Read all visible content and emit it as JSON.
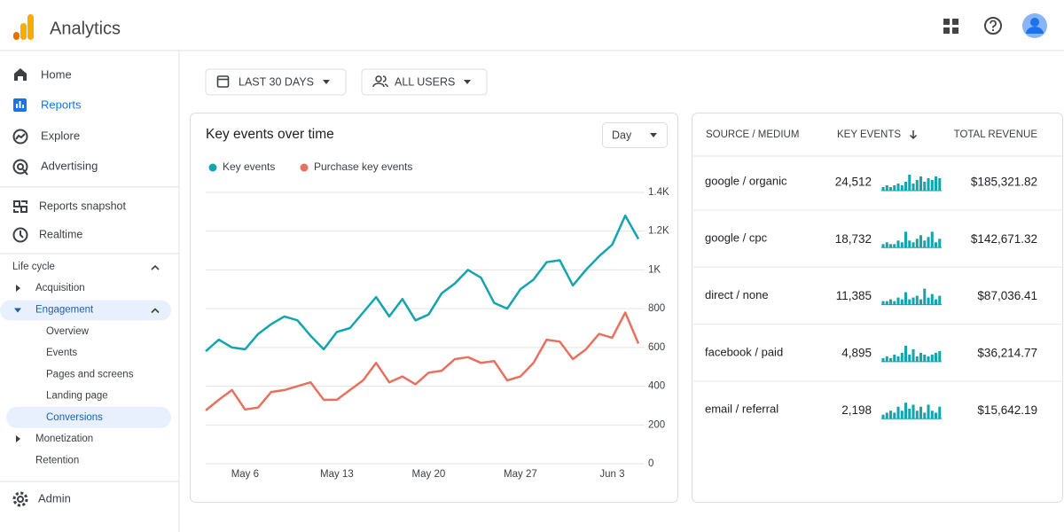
{
  "header": {
    "app_name": "Analytics"
  },
  "nav": {
    "main": [
      {
        "label": "Home"
      },
      {
        "label": "Reports",
        "selected": true
      },
      {
        "label": "Explore"
      },
      {
        "label": "Advertising"
      }
    ],
    "secondary": [
      {
        "label": "Reports snapshot"
      },
      {
        "label": "Realtime"
      }
    ],
    "section": "Life cycle",
    "tree": [
      {
        "label": "Acquisition"
      },
      {
        "label": "Engagement",
        "expanded": true,
        "children": [
          {
            "label": "Overview"
          },
          {
            "label": "Events"
          },
          {
            "label": "Pages and screens"
          },
          {
            "label": "Landing page"
          },
          {
            "label": "Conversions",
            "selected": true
          }
        ]
      },
      {
        "label": "Monetization"
      },
      {
        "label": "Retention"
      }
    ],
    "admin": "Admin"
  },
  "filters": [
    "LAST 30 DAYS",
    "ALL USERS"
  ],
  "chart_data": {
    "type": "line",
    "title": "Key events over time",
    "granularity": "Day",
    "categories": [
      null,
      null,
      null,
      "May 6",
      null,
      null,
      null,
      null,
      null,
      null,
      "May 13",
      null,
      null,
      null,
      null,
      null,
      null,
      "May 20",
      null,
      null,
      null,
      null,
      null,
      null,
      "May 27",
      null,
      null,
      null,
      null,
      null,
      null,
      "Jun 3",
      null,
      null
    ],
    "series": [
      {
        "name": "Key events",
        "color": "#12a4af",
        "values": [
          580,
          640,
          600,
          590,
          670,
          720,
          760,
          740,
          660,
          590,
          680,
          700,
          780,
          860,
          760,
          850,
          740,
          770,
          880,
          930,
          1000,
          960,
          830,
          800,
          900,
          950,
          1040,
          1050,
          920,
          1000,
          1070,
          1130,
          1280,
          1160
        ]
      },
      {
        "name": "Purchase key events",
        "color": "#e8705f",
        "values": [
          275,
          330,
          380,
          280,
          290,
          370,
          380,
          400,
          420,
          330,
          330,
          380,
          430,
          520,
          420,
          450,
          410,
          470,
          480,
          540,
          550,
          520,
          530,
          430,
          450,
          520,
          640,
          630,
          540,
          590,
          670,
          650,
          780,
          620
        ]
      }
    ],
    "ylim": [
      0,
      1400
    ],
    "yticks": [
      0,
      200,
      400,
      600,
      800,
      {
        "value": 1000,
        "label": "1K"
      },
      {
        "value": 1200,
        "label": "1.2K"
      },
      {
        "value": 1400,
        "label": "1.4K"
      }
    ],
    "grid": true
  },
  "table": {
    "columns": [
      "SOURCE / MEDIUM",
      "KEY EVENTS",
      "TOTAL REVENUE"
    ],
    "sort_column": 1,
    "rows": [
      {
        "source": "google / organic",
        "key_events": "24,512",
        "revenue": "$185,321.82",
        "trend": [
          2,
          3,
          2,
          3,
          4,
          3,
          5,
          9,
          4,
          6,
          8,
          5,
          7,
          6,
          8,
          7
        ]
      },
      {
        "source": "google / cpc",
        "key_events": "18,732",
        "revenue": "$142,671.32",
        "trend": [
          2,
          3,
          2,
          2,
          4,
          3,
          9,
          4,
          3,
          5,
          7,
          4,
          6,
          9,
          3,
          5
        ]
      },
      {
        "source": "direct / none",
        "key_events": "11,385",
        "revenue": "$87,036.41",
        "trend": [
          2,
          2,
          3,
          2,
          4,
          3,
          7,
          3,
          4,
          5,
          3,
          9,
          4,
          6,
          3,
          5
        ]
      },
      {
        "source": "facebook / paid",
        "key_events": "4,895",
        "revenue": "$36,214.77",
        "trend": [
          2,
          3,
          2,
          4,
          3,
          5,
          9,
          4,
          7,
          3,
          5,
          4,
          3,
          4,
          5,
          6
        ]
      },
      {
        "source": "email / referral",
        "key_events": "2,198",
        "revenue": "$15,642.19",
        "trend": [
          2,
          3,
          4,
          3,
          6,
          4,
          8,
          5,
          7,
          4,
          6,
          3,
          7,
          4,
          3,
          6
        ]
      }
    ]
  }
}
